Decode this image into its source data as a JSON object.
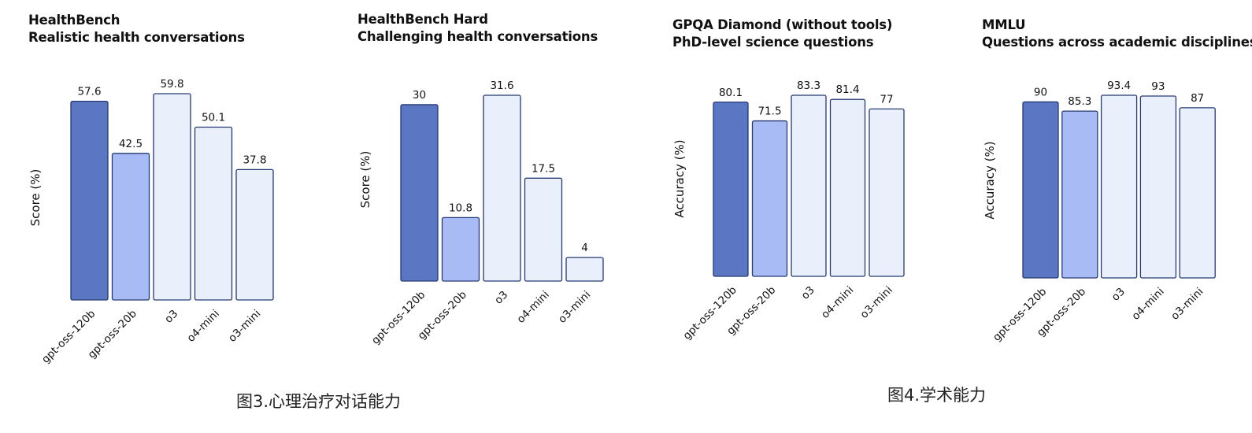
{
  "colors": {
    "primary": "#5b76c2",
    "secondary": "#a9bbf5",
    "other": "#e9effb",
    "stroke": "#243a75"
  },
  "chart_data": [
    {
      "type": "bar",
      "title": "HealthBench",
      "subtitle": "Realistic health conversations",
      "ylabel": "Score (%)",
      "categories": [
        "gpt-oss-120b",
        "gpt-oss-20b",
        "o3",
        "o4-mini",
        "o3-mini"
      ],
      "values": [
        57.6,
        42.5,
        59.8,
        50.1,
        37.8
      ],
      "value_labels": [
        "57.6",
        "42.5",
        "59.8",
        "50.1",
        "37.8"
      ],
      "ylim": [
        0,
        59.8
      ],
      "grid": false,
      "legend": "none"
    },
    {
      "type": "bar",
      "title": "HealthBench Hard",
      "subtitle": "Challenging health conversations",
      "ylabel": "Score (%)",
      "categories": [
        "gpt-oss-120b",
        "gpt-oss-20b",
        "o3",
        "o4-mini",
        "o3-mini"
      ],
      "values": [
        30,
        10.8,
        31.6,
        17.5,
        4
      ],
      "value_labels": [
        "30",
        "10.8",
        "31.6",
        "17.5",
        "4"
      ],
      "ylim": [
        0,
        31.6
      ],
      "grid": false,
      "legend": "none"
    },
    {
      "type": "bar",
      "title": "GPQA Diamond (without tools)",
      "subtitle": "PhD-level science questions",
      "ylabel": "Accuracy (%)",
      "categories": [
        "gpt-oss-120b",
        "gpt-oss-20b",
        "o3",
        "o4-mini",
        "o3-mini"
      ],
      "values": [
        80.1,
        71.5,
        83.3,
        81.4,
        77
      ],
      "value_labels": [
        "80.1",
        "71.5",
        "83.3",
        "81.4",
        "77"
      ],
      "ylim": [
        0,
        83.3
      ],
      "grid": false,
      "legend": "none"
    },
    {
      "type": "bar",
      "title": "MMLU",
      "subtitle": "Questions across academic disciplines",
      "ylabel": "Accuracy (%)",
      "categories": [
        "gpt-oss-120b",
        "gpt-oss-20b",
        "o3",
        "o4-mini",
        "o3-mini"
      ],
      "values": [
        90,
        85.3,
        93.4,
        93,
        87
      ],
      "value_labels": [
        "90",
        "85.3",
        "93.4",
        "93",
        "87"
      ],
      "ylim": [
        0,
        93.4
      ],
      "grid": false,
      "legend": "none"
    }
  ],
  "captions": {
    "fig3": "图3.心理治疗对话能力",
    "fig4": "图4.学术能力"
  }
}
